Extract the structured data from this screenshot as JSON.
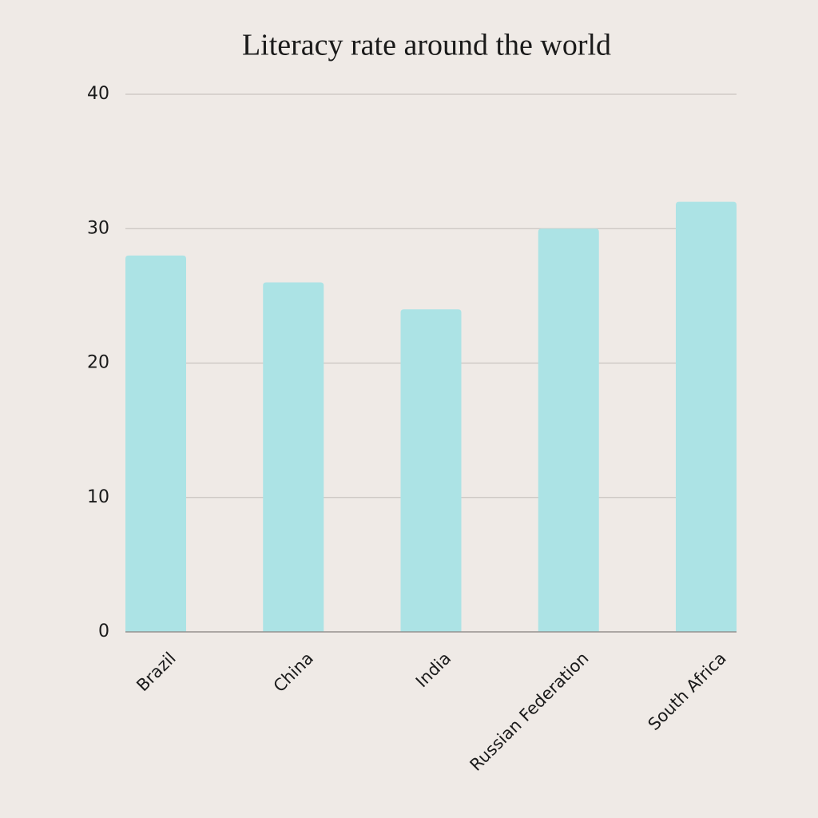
{
  "chart_data": {
    "type": "bar",
    "title": "Literacy rate around the world",
    "categories": [
      "Brazil",
      "China",
      "India",
      "Russian Federation",
      "South Africa"
    ],
    "values": [
      28,
      26,
      24,
      30,
      32
    ],
    "color": "#ace3e5",
    "ylim": [
      0,
      40
    ],
    "yticks": [
      0,
      10,
      20,
      30,
      40
    ],
    "grid": true
  }
}
